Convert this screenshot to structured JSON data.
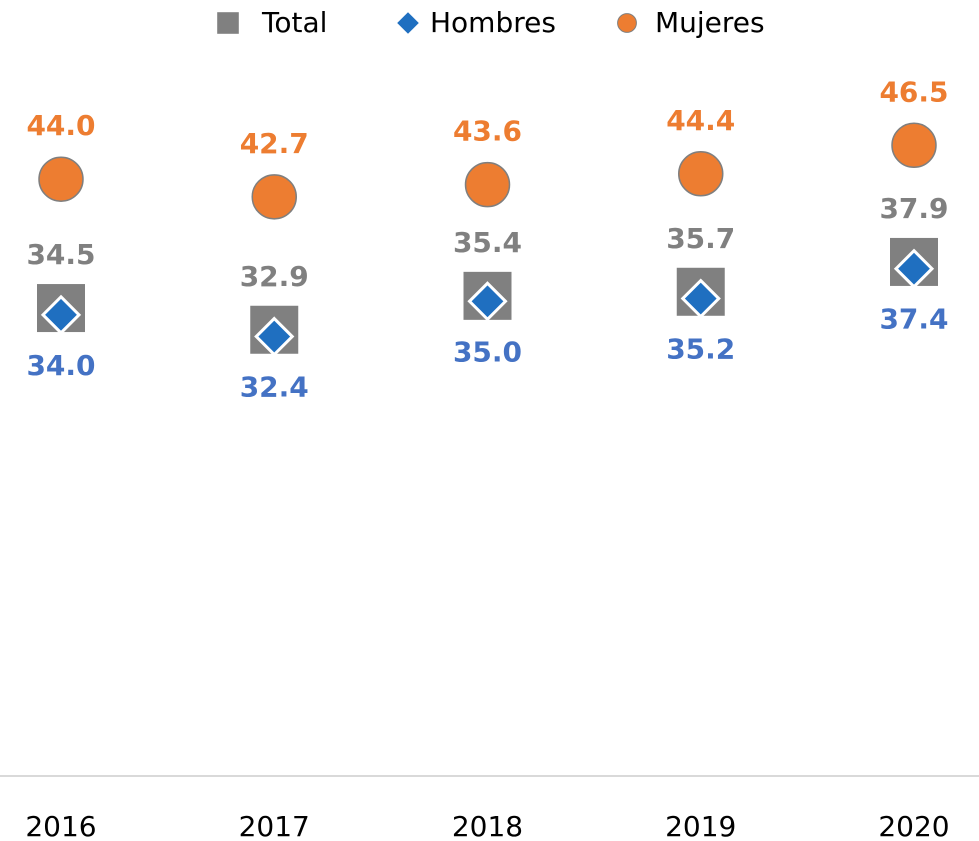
{
  "chart_data": {
    "type": "scatter",
    "categories": [
      "2016",
      "2017",
      "2018",
      "2019",
      "2020"
    ],
    "ylim": [
      0,
      55
    ],
    "series": [
      {
        "name": "Total",
        "color": "#808080",
        "marker": "square",
        "label_position": "above",
        "values": [
          34.5,
          32.9,
          35.4,
          35.7,
          37.9
        ],
        "value_labels": [
          "34.5",
          "32.9",
          "35.4",
          "35.7",
          "37.9"
        ]
      },
      {
        "name": "Hombres",
        "color": "#1f6fc0",
        "label_color": "#4472c4",
        "marker": "diamond",
        "label_position": "below",
        "values": [
          34.0,
          32.4,
          35.0,
          35.2,
          37.4
        ],
        "value_labels": [
          "34.0",
          "32.4",
          "35.0",
          "35.2",
          "37.4"
        ]
      },
      {
        "name": "Mujeres",
        "color": "#ed7d31",
        "marker": "circle",
        "label_position": "above",
        "values": [
          44.0,
          42.7,
          43.6,
          44.4,
          46.5
        ],
        "value_labels": [
          "44.0",
          "42.7",
          "43.6",
          "44.4",
          "46.5"
        ]
      }
    ],
    "legend": "top"
  }
}
